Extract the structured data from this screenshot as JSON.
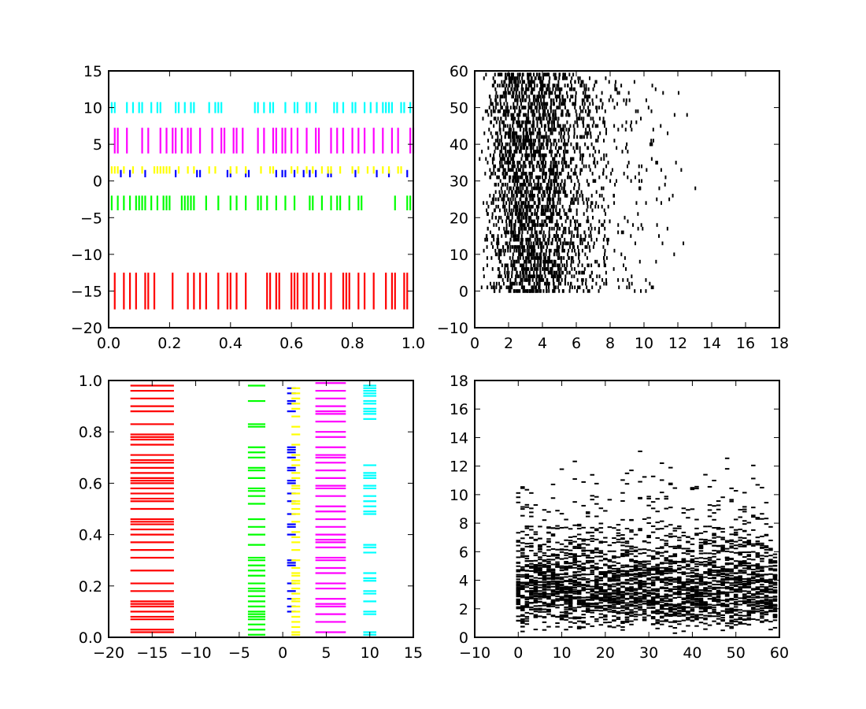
{
  "colors": {
    "red": "#ff0000",
    "green": "#00ff00",
    "blue": "#0000ff",
    "yellow": "#ffff00",
    "magenta": "#ff00ff",
    "cyan": "#00ffff",
    "black": "#000000"
  },
  "chart_data": [
    {
      "type": "eventplot",
      "orientation": "horizontal",
      "xlim": [
        0,
        1
      ],
      "ylim": [
        -20,
        15
      ],
      "x_ticks": [
        "0.0",
        "0.2",
        "0.4",
        "0.6",
        "0.8",
        "1.0"
      ],
      "y_ticks": [
        "−20",
        "−15",
        "−10",
        "−5",
        "0",
        "5",
        "10",
        "15"
      ],
      "series": [
        {
          "color": "red",
          "lineoffset": -15,
          "linelength": 5,
          "positions": [
            0.02,
            0.05,
            0.07,
            0.09,
            0.12,
            0.13,
            0.15,
            0.21,
            0.26,
            0.28,
            0.3,
            0.32,
            0.36,
            0.39,
            0.4,
            0.42,
            0.45,
            0.52,
            0.53,
            0.55,
            0.56,
            0.6,
            0.61,
            0.62,
            0.64,
            0.65,
            0.67,
            0.69,
            0.71,
            0.73,
            0.77,
            0.78,
            0.79,
            0.82,
            0.84,
            0.87,
            0.91,
            0.93,
            0.94,
            0.97,
            0.98
          ]
        },
        {
          "color": "green",
          "lineoffset": -3,
          "linelength": 2,
          "positions": [
            0.01,
            0.03,
            0.05,
            0.07,
            0.09,
            0.1,
            0.11,
            0.12,
            0.14,
            0.16,
            0.18,
            0.19,
            0.2,
            0.24,
            0.25,
            0.26,
            0.27,
            0.28,
            0.32,
            0.36,
            0.4,
            0.42,
            0.45,
            0.49,
            0.5,
            0.52,
            0.55,
            0.58,
            0.61,
            0.66,
            0.67,
            0.7,
            0.73,
            0.75,
            0.76,
            0.79,
            0.82,
            0.83,
            0.94,
            0.98,
            0.99
          ]
        },
        {
          "color": "blue",
          "lineoffset": 1,
          "linelength": 1,
          "positions": [
            0.04,
            0.07,
            0.12,
            0.22,
            0.29,
            0.3,
            0.39,
            0.4,
            0.45,
            0.46,
            0.55,
            0.57,
            0.58,
            0.61,
            0.64,
            0.66,
            0.68,
            0.72,
            0.73,
            0.81,
            0.88,
            0.92,
            0.98
          ]
        },
        {
          "color": "yellow",
          "lineoffset": 1.5,
          "linelength": 1,
          "positions": [
            0.01,
            0.02,
            0.03,
            0.05,
            0.08,
            0.11,
            0.15,
            0.16,
            0.17,
            0.18,
            0.19,
            0.2,
            0.23,
            0.26,
            0.28,
            0.33,
            0.35,
            0.4,
            0.42,
            0.45,
            0.5,
            0.53,
            0.54,
            0.6,
            0.62,
            0.65,
            0.67,
            0.7,
            0.72,
            0.73,
            0.76,
            0.8,
            0.82,
            0.85,
            0.87,
            0.9,
            0.92,
            0.95,
            0.96
          ]
        },
        {
          "color": "magenta",
          "lineoffset": 5.5,
          "linelength": 3.5,
          "positions": [
            0.02,
            0.03,
            0.06,
            0.11,
            0.13,
            0.17,
            0.19,
            0.21,
            0.22,
            0.24,
            0.26,
            0.27,
            0.3,
            0.34,
            0.37,
            0.38,
            0.41,
            0.42,
            0.44,
            0.49,
            0.51,
            0.54,
            0.55,
            0.57,
            0.58,
            0.6,
            0.62,
            0.65,
            0.68,
            0.69,
            0.73,
            0.75,
            0.77,
            0.8,
            0.82,
            0.84,
            0.87,
            0.9,
            0.93,
            0.95,
            0.99,
            1.0
          ]
        },
        {
          "color": "cyan",
          "lineoffset": 10,
          "linelength": 1.5,
          "positions": [
            0.01,
            0.02,
            0.06,
            0.08,
            0.1,
            0.11,
            0.14,
            0.16,
            0.17,
            0.22,
            0.23,
            0.25,
            0.27,
            0.28,
            0.33,
            0.35,
            0.36,
            0.37,
            0.48,
            0.49,
            0.51,
            0.53,
            0.54,
            0.58,
            0.61,
            0.62,
            0.65,
            0.66,
            0.68,
            0.74,
            0.75,
            0.77,
            0.8,
            0.81,
            0.84,
            0.86,
            0.88,
            0.9,
            0.91,
            0.92,
            0.93,
            0.96,
            0.97,
            0.99
          ]
        }
      ]
    },
    {
      "type": "eventplot",
      "orientation": "horizontal",
      "xlim": [
        0,
        18
      ],
      "ylim": [
        -10,
        60
      ],
      "x_ticks": [
        "0",
        "2",
        "4",
        "6",
        "8",
        "10",
        "12",
        "14",
        "16",
        "18"
      ],
      "y_ticks": [
        "−10",
        "0",
        "10",
        "20",
        "30",
        "40",
        "50",
        "60"
      ],
      "dense_random": {
        "color": "black",
        "rows": 60,
        "events_per_row": 50,
        "distribution": "gamma",
        "shape": 4,
        "scale": 1,
        "seed": 19680801,
        "linelength": 1
      }
    },
    {
      "type": "eventplot",
      "orientation": "vertical",
      "xlim": [
        -20,
        15
      ],
      "ylim": [
        0,
        1
      ],
      "x_ticks": [
        "−20",
        "−15",
        "−10",
        "−5",
        "0",
        "5",
        "10",
        "15"
      ],
      "y_ticks": [
        "0.0",
        "0.2",
        "0.4",
        "0.6",
        "0.8",
        "1.0"
      ],
      "series": [
        {
          "color": "red",
          "lineoffset": -15,
          "linelength": 5,
          "positions": [
            0.02,
            0.03,
            0.07,
            0.08,
            0.1,
            0.12,
            0.13,
            0.14,
            0.18,
            0.21,
            0.26,
            0.31,
            0.34,
            0.37,
            0.4,
            0.42,
            0.44,
            0.45,
            0.46,
            0.5,
            0.53,
            0.54,
            0.56,
            0.58,
            0.6,
            0.61,
            0.62,
            0.64,
            0.66,
            0.68,
            0.69,
            0.71,
            0.75,
            0.77,
            0.78,
            0.79,
            0.83,
            0.88,
            0.9,
            0.93,
            0.96,
            0.98
          ]
        },
        {
          "color": "green",
          "lineoffset": -3,
          "linelength": 2,
          "positions": [
            0.01,
            0.03,
            0.05,
            0.07,
            0.08,
            0.09,
            0.1,
            0.12,
            0.14,
            0.16,
            0.18,
            0.19,
            0.21,
            0.24,
            0.26,
            0.28,
            0.3,
            0.31,
            0.36,
            0.4,
            0.43,
            0.46,
            0.52,
            0.55,
            0.57,
            0.58,
            0.62,
            0.65,
            0.66,
            0.7,
            0.72,
            0.74,
            0.82,
            0.83,
            0.92,
            0.98
          ]
        },
        {
          "color": "blue",
          "lineoffset": 1,
          "linelength": 1,
          "positions": [
            0.1,
            0.12,
            0.15,
            0.18,
            0.21,
            0.28,
            0.29,
            0.3,
            0.4,
            0.43,
            0.44,
            0.48,
            0.53,
            0.56,
            0.6,
            0.61,
            0.65,
            0.66,
            0.7,
            0.72,
            0.73,
            0.74,
            0.88,
            0.91,
            0.92,
            0.95,
            0.97
          ]
        },
        {
          "color": "yellow",
          "lineoffset": 1.5,
          "linelength": 1,
          "positions": [
            0.01,
            0.02,
            0.04,
            0.06,
            0.08,
            0.1,
            0.12,
            0.14,
            0.15,
            0.17,
            0.19,
            0.21,
            0.22,
            0.24,
            0.25,
            0.27,
            0.3,
            0.34,
            0.37,
            0.39,
            0.41,
            0.45,
            0.48,
            0.5,
            0.52,
            0.53,
            0.56,
            0.58,
            0.59,
            0.62,
            0.64,
            0.67,
            0.69,
            0.71,
            0.75,
            0.79,
            0.82,
            0.86,
            0.89,
            0.91,
            0.93,
            0.95,
            0.97
          ]
        },
        {
          "color": "magenta",
          "lineoffset": 5.5,
          "linelength": 3.5,
          "positions": [
            0.02,
            0.06,
            0.09,
            0.12,
            0.13,
            0.15,
            0.19,
            0.21,
            0.25,
            0.27,
            0.3,
            0.31,
            0.35,
            0.37,
            0.38,
            0.4,
            0.43,
            0.46,
            0.49,
            0.51,
            0.55,
            0.58,
            0.59,
            0.62,
            0.65,
            0.68,
            0.7,
            0.71,
            0.74,
            0.78,
            0.8,
            0.84,
            0.87,
            0.88,
            0.9,
            0.93,
            0.96,
            0.99
          ]
        },
        {
          "color": "cyan",
          "lineoffset": 10,
          "linelength": 1.5,
          "positions": [
            0.01,
            0.02,
            0.09,
            0.1,
            0.14,
            0.17,
            0.18,
            0.22,
            0.23,
            0.25,
            0.33,
            0.35,
            0.36,
            0.48,
            0.49,
            0.51,
            0.53,
            0.55,
            0.58,
            0.59,
            0.62,
            0.63,
            0.64,
            0.67,
            0.85,
            0.87,
            0.88,
            0.89,
            0.91,
            0.92,
            0.94,
            0.95,
            0.96,
            0.97,
            0.98
          ]
        }
      ]
    },
    {
      "type": "eventplot",
      "orientation": "vertical",
      "xlim": [
        -10,
        60
      ],
      "ylim": [
        0,
        18
      ],
      "x_ticks": [
        "−10",
        "0",
        "10",
        "20",
        "30",
        "40",
        "50",
        "60"
      ],
      "y_ticks": [
        "0",
        "2",
        "4",
        "6",
        "8",
        "10",
        "12",
        "14",
        "16",
        "18"
      ],
      "dense_random": {
        "color": "black",
        "rows": 60,
        "events_per_row": 50,
        "distribution": "gamma",
        "shape": 4,
        "scale": 1,
        "seed": 19680801,
        "linelength": 1
      }
    }
  ]
}
